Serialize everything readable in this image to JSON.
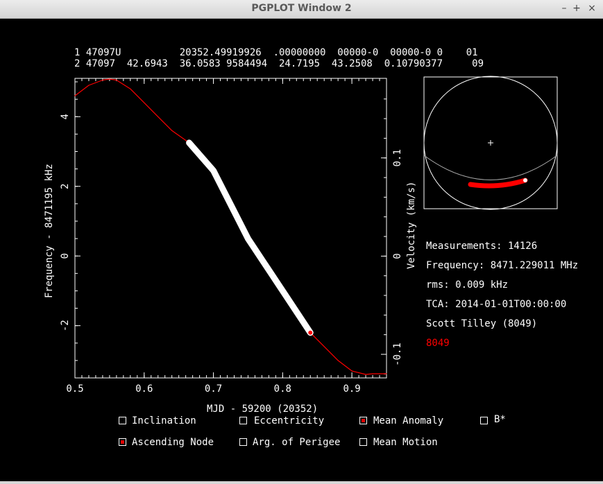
{
  "window": {
    "title": "PGPLOT Window 2",
    "buttons": {
      "minimize": "–",
      "maximize": "+",
      "close": "×"
    }
  },
  "tle": {
    "line1": "1 47097U          20352.49919926  .00000000  00000-0  00000-0 0    01",
    "line2": "2 47097  42.6943  36.0583 9584494  24.7195  43.2508  0.10790377     09"
  },
  "info": {
    "measurements": "Measurements: 14126",
    "frequency": "Frequency: 8471.229011 MHz",
    "rms": "rms: 0.009 kHz",
    "tca": "TCA: 2014-01-01T00:00:00",
    "observer": "Scott Tilley (8049)",
    "site": "8049"
  },
  "colors": {
    "background": "#000000",
    "foreground": "#ffffff",
    "accent": "#ff0000"
  },
  "checkboxes": [
    {
      "label": "Inclination",
      "checked": false
    },
    {
      "label": "Eccentricity",
      "checked": false
    },
    {
      "label": "Mean Anomaly",
      "checked": true
    },
    {
      "label": "B*",
      "checked": false
    },
    {
      "label": "Ascending Node",
      "checked": true
    },
    {
      "label": "Arg. of Perigee",
      "checked": false
    },
    {
      "label": "Mean Motion",
      "checked": false
    }
  ],
  "chart_data": {
    "type": "line",
    "xlabel": "MJD - 59200 (20352)",
    "ylabel": "Frequency - 8471195 kHz",
    "y2label": "Velocity (km/s)",
    "xlim": [
      0.5,
      0.95
    ],
    "ylim": [
      -3.5,
      5.1
    ],
    "y2lim": [
      -0.124,
      0.181
    ],
    "x_ticks": [
      0.5,
      0.6,
      0.7,
      0.8,
      0.9
    ],
    "x_tick_labels": [
      "0.5",
      "0.6",
      "0.7",
      "0.8",
      "0.9"
    ],
    "y_ticks": [
      -2,
      0,
      2,
      4
    ],
    "y_tick_labels": [
      "-2",
      "0",
      "2",
      "4"
    ],
    "y2_ticks": [
      -0.1,
      0,
      0.1
    ],
    "y2_tick_labels": [
      "-0.1",
      "0",
      "0.1"
    ],
    "series": [
      {
        "role": "model",
        "color": "#ff0000",
        "x": [
          0.5,
          0.52,
          0.54,
          0.55,
          0.56,
          0.58,
          0.6,
          0.62,
          0.64,
          0.665,
          0.7,
          0.75,
          0.8,
          0.84,
          0.86,
          0.88,
          0.9,
          0.92,
          0.93,
          0.95
        ],
        "y": [
          4.6,
          4.9,
          5.05,
          5.08,
          5.05,
          4.8,
          4.4,
          4.0,
          3.6,
          3.25,
          2.45,
          0.5,
          -1.0,
          -2.2,
          -2.6,
          -3.0,
          -3.3,
          -3.4,
          -3.38,
          -3.38
        ]
      },
      {
        "role": "measurements",
        "color": "#ffffff",
        "x": [
          0.665,
          0.7,
          0.75,
          0.8,
          0.84
        ],
        "y": [
          3.25,
          2.45,
          0.5,
          -1.0,
          -2.2
        ]
      }
    ],
    "markers": [
      {
        "x": 0.84,
        "y": -2.2,
        "color": "#ff0000"
      }
    ]
  },
  "skyplot": {
    "pass_track": {
      "color": "#ff0000",
      "start_label": "",
      "end_label": ""
    }
  }
}
